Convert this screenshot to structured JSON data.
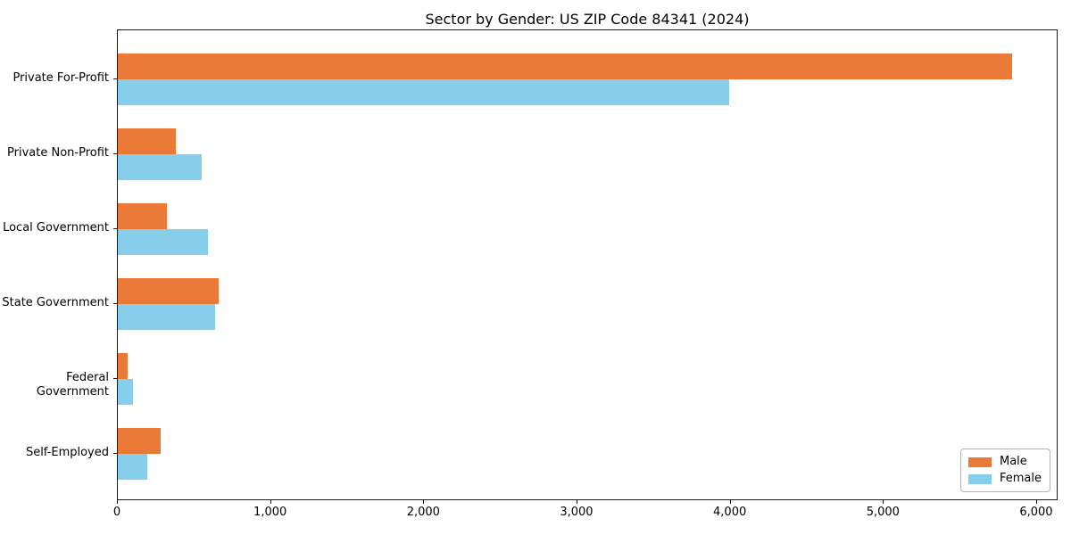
{
  "title": "Sector by Gender: US ZIP Code 84341 (2024)",
  "colors": {
    "male": "#EB7A38",
    "female": "#87CEEB",
    "axis": "#1a1a1a",
    "background": "#ffffff",
    "legend_border": "#b4b4b4"
  },
  "chart_data": {
    "type": "bar",
    "orientation": "horizontal",
    "title": "Sector by Gender: US ZIP Code 84341 (2024)",
    "categories": [
      "Private For-Profit",
      "Private Non-Profit",
      "Local Government",
      "State Government",
      "Federal Government",
      "Self-Employed"
    ],
    "series": [
      {
        "name": "Male",
        "color": "#EB7A38",
        "values": [
          5850,
          380,
          320,
          660,
          65,
          280
        ]
      },
      {
        "name": "Female",
        "color": "#87CEEB",
        "values": [
          4000,
          550,
          590,
          635,
          100,
          190
        ]
      }
    ],
    "xlabel": "",
    "ylabel": "",
    "xlim": [
      0,
      6140
    ],
    "xticks": [
      0,
      1000,
      2000,
      3000,
      4000,
      5000,
      6000
    ],
    "xtick_labels": [
      "0",
      "1,000",
      "2,000",
      "3,000",
      "4,000",
      "5,000",
      "6,000"
    ],
    "grid": false,
    "legend": {
      "position": "lower right",
      "entries": [
        "Male",
        "Female"
      ]
    }
  }
}
